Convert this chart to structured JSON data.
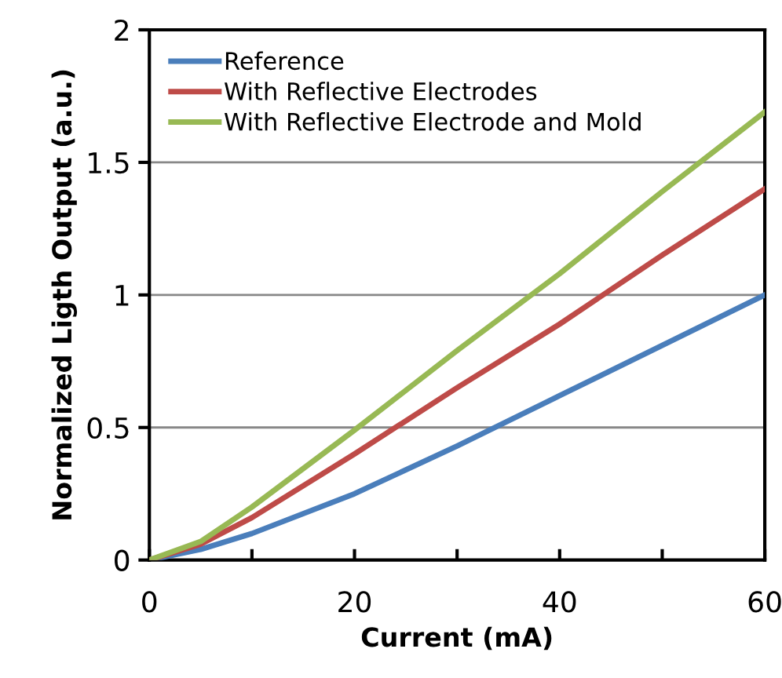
{
  "chart_data": {
    "type": "line",
    "xlabel": "Current (mA)",
    "ylabel": "Normalized Ligth Output (a.u.)",
    "x": [
      0,
      5,
      10,
      20,
      30,
      40,
      50,
      60
    ],
    "series": [
      {
        "name": "Reference",
        "color": "#4a7ebb",
        "values": [
          0,
          0.04,
          0.1,
          0.25,
          0.43,
          0.62,
          0.81,
          1.0
        ]
      },
      {
        "name": "With Reflective Electrodes",
        "color": "#be4b48",
        "values": [
          0,
          0.06,
          0.16,
          0.4,
          0.65,
          0.89,
          1.15,
          1.4
        ]
      },
      {
        "name": "With Reflective Electrode and Mold",
        "color": "#98b954",
        "values": [
          0,
          0.07,
          0.2,
          0.49,
          0.79,
          1.08,
          1.39,
          1.69
        ]
      }
    ],
    "xlim": [
      0,
      60
    ],
    "ylim": [
      0,
      2
    ],
    "xticks": [
      0,
      {
        "value": 10,
        "label": null
      },
      20,
      {
        "value": 30,
        "label": null
      },
      40,
      {
        "value": 50,
        "label": null
      },
      60
    ],
    "yticks": [
      0,
      0.5,
      1,
      1.5,
      2
    ],
    "grid": "y",
    "legend": "top left",
    "marker": "none",
    "line_style": "solid"
  }
}
